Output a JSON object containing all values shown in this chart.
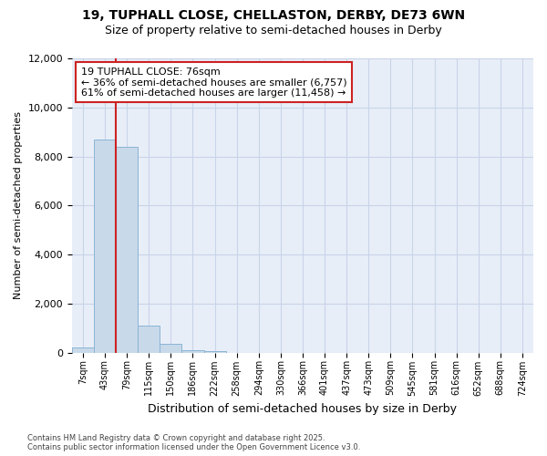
{
  "title_line1": "19, TUPHALL CLOSE, CHELLASTON, DERBY, DE73 6WN",
  "title_line2": "Size of property relative to semi-detached houses in Derby",
  "xlabel": "Distribution of semi-detached houses by size in Derby",
  "ylabel": "Number of semi-detached properties",
  "categories": [
    "7sqm",
    "43sqm",
    "79sqm",
    "115sqm",
    "150sqm",
    "186sqm",
    "222sqm",
    "258sqm",
    "294sqm",
    "330sqm",
    "366sqm",
    "401sqm",
    "437sqm",
    "473sqm",
    "509sqm",
    "545sqm",
    "581sqm",
    "616sqm",
    "652sqm",
    "688sqm",
    "724sqm"
  ],
  "bar_heights": [
    200,
    8700,
    8400,
    1100,
    350,
    100,
    50,
    0,
    0,
    0,
    0,
    0,
    0,
    0,
    0,
    0,
    0,
    0,
    0,
    0,
    0
  ],
  "bar_color": "#c8d9ea",
  "bar_edge_color": "#8ab4d4",
  "grid_color": "#c8d4e8",
  "background_color": "#e8eef8",
  "vline_color": "#cc2222",
  "vline_x": 2,
  "annotation_title": "19 TUPHALL CLOSE: 76sqm",
  "annotation_line1": "← 36% of semi-detached houses are smaller (6,757)",
  "annotation_line2": "61% of semi-detached houses are larger (11,458) →",
  "ylim": [
    0,
    12000
  ],
  "yticks": [
    0,
    2000,
    4000,
    6000,
    8000,
    10000,
    12000
  ],
  "footer_line1": "Contains HM Land Registry data © Crown copyright and database right 2025.",
  "footer_line2": "Contains public sector information licensed under the Open Government Licence v3.0."
}
